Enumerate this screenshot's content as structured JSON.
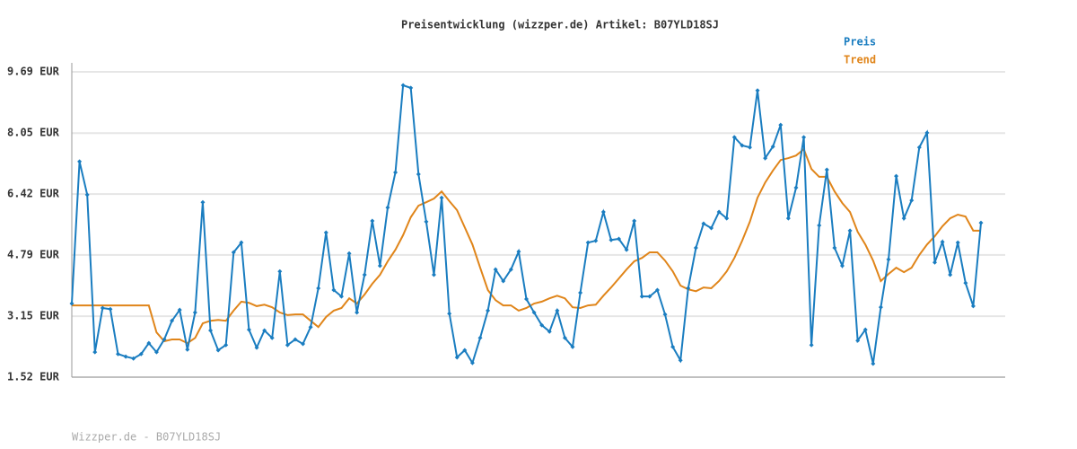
{
  "chart_data": {
    "type": "line",
    "title": "Preisentwicklung (wizzper.de) Artikel: B07YLD18SJ",
    "footer": "Wizzper.de - B07YLD18SJ",
    "ylim": [
      1.52,
      9.69
    ],
    "yticks": [
      {
        "value": 1.52,
        "label": "1.52 EUR"
      },
      {
        "value": 3.15,
        "label": "3.15 EUR"
      },
      {
        "value": 4.79,
        "label": "4.79 EUR"
      },
      {
        "value": 6.42,
        "label": "6.42 EUR"
      },
      {
        "value": 8.05,
        "label": "8.05 EUR"
      },
      {
        "value": 9.69,
        "label": "9.69 EUR"
      }
    ],
    "grid": true,
    "legend": "top-right",
    "series": [
      {
        "name": "Preis",
        "color": "#1a7dc0",
        "marker": "diamond",
        "values": [
          3.49,
          7.29,
          6.4,
          2.19,
          3.37,
          3.34,
          2.14,
          2.07,
          2.02,
          2.14,
          2.43,
          2.19,
          2.53,
          3.03,
          3.32,
          2.26,
          3.25,
          6.2,
          2.77,
          2.24,
          2.38,
          4.86,
          5.12,
          2.79,
          2.31,
          2.77,
          2.57,
          4.35,
          2.38,
          2.53,
          2.41,
          2.86,
          3.9,
          5.39,
          3.85,
          3.68,
          4.83,
          3.25,
          4.26,
          5.7,
          4.5,
          6.06,
          7.0,
          9.33,
          9.26,
          6.95,
          5.68,
          4.26,
          6.32,
          3.22,
          2.05,
          2.24,
          1.9,
          2.57,
          3.3,
          4.4,
          4.09,
          4.4,
          4.88,
          3.61,
          3.25,
          2.91,
          2.74,
          3.3,
          2.57,
          2.33,
          3.78,
          5.12,
          5.17,
          5.94,
          5.19,
          5.22,
          4.93,
          5.7,
          3.68,
          3.68,
          3.85,
          3.2,
          2.33,
          1.97,
          3.9,
          4.98,
          5.63,
          5.51,
          5.94,
          5.77,
          7.94,
          7.72,
          7.67,
          9.19,
          7.38,
          7.69,
          8.27,
          5.77,
          6.59,
          7.94,
          2.38,
          5.58,
          7.07,
          4.98,
          4.5,
          5.44,
          2.5,
          2.79,
          1.88,
          3.39,
          4.67,
          6.9,
          5.77,
          6.25,
          7.67,
          8.06,
          4.59,
          5.14,
          4.26,
          5.12,
          4.04,
          3.42,
          5.65
        ]
      },
      {
        "name": "Trend",
        "color": "#e0851a",
        "values": [
          3.44,
          3.44,
          3.44,
          3.44,
          3.44,
          3.44,
          3.44,
          3.44,
          3.44,
          3.44,
          3.44,
          2.72,
          2.48,
          2.53,
          2.53,
          2.43,
          2.57,
          2.96,
          3.03,
          3.05,
          3.03,
          3.3,
          3.54,
          3.51,
          3.42,
          3.46,
          3.39,
          3.25,
          3.18,
          3.2,
          3.2,
          3.03,
          2.86,
          3.13,
          3.3,
          3.37,
          3.63,
          3.49,
          3.73,
          4.02,
          4.26,
          4.62,
          4.93,
          5.32,
          5.8,
          6.11,
          6.2,
          6.3,
          6.49,
          6.23,
          5.99,
          5.53,
          5.07,
          4.45,
          3.85,
          3.58,
          3.44,
          3.44,
          3.3,
          3.37,
          3.49,
          3.54,
          3.63,
          3.7,
          3.63,
          3.39,
          3.37,
          3.44,
          3.46,
          3.7,
          3.92,
          4.16,
          4.4,
          4.62,
          4.71,
          4.86,
          4.86,
          4.64,
          4.35,
          3.97,
          3.87,
          3.82,
          3.92,
          3.9,
          4.09,
          4.35,
          4.71,
          5.17,
          5.68,
          6.32,
          6.73,
          7.05,
          7.33,
          7.38,
          7.45,
          7.62,
          7.09,
          6.88,
          6.88,
          6.49,
          6.18,
          5.94,
          5.41,
          5.07,
          4.64,
          4.09,
          4.28,
          4.45,
          4.33,
          4.45,
          4.79,
          5.07,
          5.29,
          5.56,
          5.77,
          5.87,
          5.82,
          5.44,
          5.44
        ]
      }
    ]
  }
}
